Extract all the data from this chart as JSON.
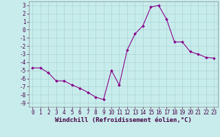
{
  "x": [
    0,
    1,
    2,
    3,
    4,
    5,
    6,
    7,
    8,
    9,
    10,
    11,
    12,
    13,
    14,
    15,
    16,
    17,
    18,
    19,
    20,
    21,
    22,
    23
  ],
  "y": [
    -4.7,
    -4.7,
    -5.3,
    -6.3,
    -6.3,
    -6.8,
    -7.2,
    -7.7,
    -8.3,
    -8.6,
    -5.0,
    -6.8,
    -2.5,
    -0.5,
    0.5,
    2.8,
    3.0,
    1.3,
    -1.5,
    -1.5,
    -2.7,
    -3.0,
    -3.4,
    -3.5
  ],
  "line_color": "#880088",
  "marker": "D",
  "marker_size": 2.0,
  "bg_color": "#c8ecec",
  "grid_color": "#aad4d4",
  "xlabel": "Windchill (Refroidissement éolien,°C)",
  "tick_fontsize": 5.5,
  "xlabel_fontsize": 6.5,
  "xlim": [
    -0.5,
    23.5
  ],
  "ylim": [
    -9.5,
    3.5
  ],
  "yticks": [
    3,
    2,
    1,
    0,
    -1,
    -2,
    -3,
    -4,
    -5,
    -6,
    -7,
    -8,
    -9
  ],
  "xticks": [
    0,
    1,
    2,
    3,
    4,
    5,
    6,
    7,
    8,
    9,
    10,
    11,
    12,
    13,
    14,
    15,
    16,
    17,
    18,
    19,
    20,
    21,
    22,
    23
  ]
}
